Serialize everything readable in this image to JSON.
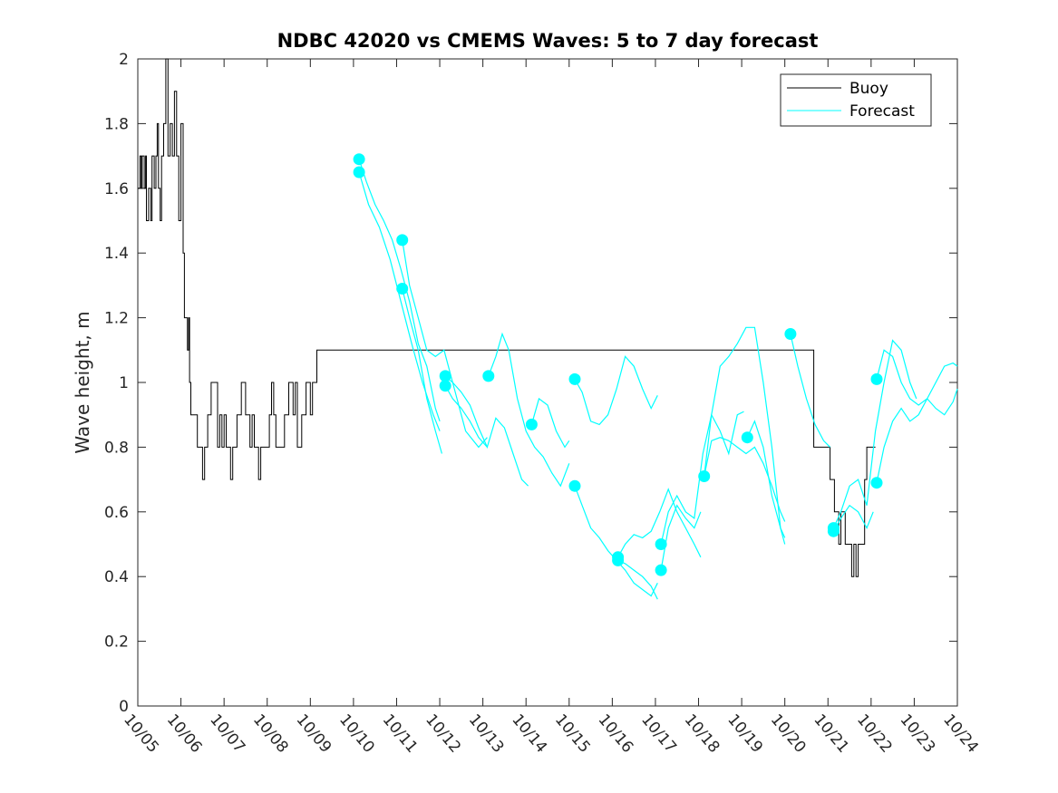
{
  "chart_data": {
    "type": "line",
    "title": "NDBC 42020 vs CMEMS Waves: 5 to 7 day forecast",
    "xlabel": "",
    "ylabel": "Wave height, m",
    "xlim": [
      0,
      19
    ],
    "ylim": [
      0,
      2
    ],
    "x_tick_labels": [
      "10/05",
      "10/06",
      "10/07",
      "10/08",
      "10/09",
      "10/10",
      "10/11",
      "10/12",
      "10/13",
      "10/14",
      "10/15",
      "10/16",
      "10/17",
      "10/18",
      "10/19",
      "10/20",
      "10/21",
      "10/22",
      "10/23",
      "10/24"
    ],
    "y_ticks": [
      0,
      0.2,
      0.4,
      0.6,
      0.8,
      1,
      1.2,
      1.4,
      1.6,
      1.8,
      2
    ],
    "y_tick_labels": [
      "0",
      "0.2",
      "0.4",
      "0.6",
      "0.8",
      "1",
      "1.2",
      "1.4",
      "1.6",
      "1.8",
      "2"
    ],
    "x_unit": "days since 10/05",
    "legend": {
      "position": "top-right",
      "entries": [
        "Buoy",
        "Forecast"
      ]
    },
    "colors": {
      "buoy": "#000000",
      "forecast": "#00FFFF"
    },
    "series": [
      {
        "name": "Buoy",
        "x": [
          0,
          0.05,
          0.08,
          0.1,
          0.15,
          0.18,
          0.2,
          0.25,
          0.3,
          0.33,
          0.38,
          0.42,
          0.45,
          0.48,
          0.52,
          0.55,
          0.6,
          0.65,
          0.7,
          0.75,
          0.8,
          0.85,
          0.9,
          0.95,
          1.0,
          1.05,
          1.08,
          1.12,
          1.15,
          1.18,
          1.2,
          1.23,
          1.3,
          1.38,
          1.45,
          1.5,
          1.55,
          1.58,
          1.62,
          1.65,
          1.7,
          1.78,
          1.85,
          1.9,
          1.95,
          2.0,
          2.05,
          2.1,
          2.15,
          2.2,
          2.3,
          2.4,
          2.5,
          2.6,
          2.65,
          2.7,
          2.75,
          2.8,
          2.85,
          2.9,
          2.95,
          3.0,
          3.05,
          3.1,
          3.15,
          3.2,
          3.3,
          3.4,
          3.5,
          3.55,
          3.6,
          3.65,
          3.7,
          3.75,
          3.8,
          3.9,
          4.0,
          4.05,
          4.1,
          4.15,
          4.2,
          4.25,
          4.3,
          4.35,
          4.4,
          4.5,
          4.55,
          4.6,
          4.65,
          4.7,
          4.75,
          15.67,
          16.0,
          16.05,
          16.1,
          16.15,
          16.2,
          16.25,
          16.3,
          16.35,
          16.4,
          16.45,
          16.5,
          16.55,
          16.6,
          16.65,
          16.7,
          16.75,
          16.8,
          16.85,
          16.9,
          16.95,
          17.0,
          17.05,
          17.1
        ],
        "y": [
          1.6,
          1.7,
          1.6,
          1.7,
          1.6,
          1.7,
          1.5,
          1.6,
          1.5,
          1.7,
          1.6,
          1.7,
          1.8,
          1.6,
          1.5,
          1.7,
          1.8,
          2.0,
          1.7,
          1.8,
          1.7,
          1.9,
          1.7,
          1.5,
          1.8,
          1.4,
          1.2,
          1.2,
          1.1,
          1.2,
          1.0,
          0.9,
          0.9,
          0.8,
          0.8,
          0.7,
          0.8,
          0.8,
          0.9,
          0.9,
          1.0,
          1.0,
          0.8,
          0.9,
          0.8,
          0.9,
          0.8,
          0.8,
          0.7,
          0.8,
          0.9,
          1.0,
          0.9,
          0.8,
          0.9,
          0.8,
          0.8,
          0.7,
          0.8,
          0.8,
          0.8,
          0.8,
          0.9,
          1.0,
          0.9,
          0.8,
          0.8,
          0.9,
          1.0,
          1.0,
          0.9,
          1.0,
          0.8,
          0.8,
          0.9,
          1.0,
          0.9,
          1.0,
          1.0,
          1.1,
          1.1,
          1.1,
          1.1,
          1.1,
          1.1,
          1.1,
          1.1,
          1.1,
          1.1,
          1.1,
          1.1,
          0.8,
          0.8,
          0.7,
          0.7,
          0.6,
          0.6,
          0.5,
          0.6,
          0.6,
          0.5,
          0.5,
          0.5,
          0.4,
          0.5,
          0.4,
          0.5,
          0.5,
          0.5,
          0.7,
          0.8,
          0.8,
          0.8,
          0.8,
          0.8
        ]
      },
      {
        "name": "Forecast",
        "lines": [
          {
            "x": [
              5.13,
              5.3,
              5.5,
              5.7,
              5.9,
              6.1,
              6.3,
              6.5,
              6.7,
              6.9,
              7.0
            ],
            "y": [
              1.69,
              1.62,
              1.55,
              1.5,
              1.44,
              1.35,
              1.25,
              1.12,
              1.05,
              0.92,
              0.88
            ]
          },
          {
            "x": [
              5.13,
              5.35,
              5.6,
              5.85,
              6.1,
              6.35,
              6.6,
              6.85,
              7.0
            ],
            "y": [
              1.65,
              1.55,
              1.48,
              1.38,
              1.25,
              1.12,
              1.0,
              0.9,
              0.85
            ]
          },
          {
            "x": [
              6.13,
              6.3,
              6.5,
              6.7,
              6.9,
              7.1,
              7.3,
              7.5,
              7.6,
              7.9,
              8.1
            ],
            "y": [
              1.44,
              1.3,
              1.2,
              1.1,
              1.08,
              1.1,
              1.0,
              0.9,
              0.85,
              0.8,
              0.83
            ]
          },
          {
            "x": [
              6.13,
              6.3,
              6.5,
              6.7,
              6.9,
              7.05
            ],
            "y": [
              1.29,
              1.2,
              1.1,
              0.95,
              0.85,
              0.78
            ]
          },
          {
            "x": [
              7.13,
              7.3,
              7.5,
              7.7,
              7.9,
              8.1,
              8.3,
              8.5,
              8.7,
              8.9,
              9.05
            ],
            "y": [
              1.02,
              1.0,
              0.97,
              0.93,
              0.86,
              0.8,
              0.89,
              0.86,
              0.78,
              0.7,
              0.68
            ]
          },
          {
            "x": [
              7.13,
              7.3,
              7.5,
              7.7,
              7.9,
              8.1
            ],
            "y": [
              0.99,
              0.95,
              0.92,
              0.88,
              0.83,
              0.8
            ]
          },
          {
            "x": [
              8.13,
              8.3,
              8.45,
              8.6,
              8.8,
              9.0,
              9.2,
              9.4,
              9.6,
              9.8,
              10.0
            ],
            "y": [
              1.02,
              1.08,
              1.15,
              1.1,
              0.95,
              0.85,
              0.8,
              0.77,
              0.72,
              0.68,
              0.75
            ]
          },
          {
            "x": [
              9.13,
              9.3,
              9.5,
              9.7,
              9.9,
              10.0
            ],
            "y": [
              0.87,
              0.95,
              0.93,
              0.85,
              0.8,
              0.82
            ]
          },
          {
            "x": [
              10.13,
              10.3,
              10.5,
              10.7,
              10.9,
              11.1,
              11.3,
              11.5,
              11.7,
              11.9,
              12.05
            ],
            "y": [
              1.01,
              0.97,
              0.88,
              0.87,
              0.9,
              0.98,
              1.08,
              1.05,
              0.98,
              0.92,
              0.96
            ]
          },
          {
            "x": [
              10.13,
              10.3,
              10.5,
              10.7,
              10.9,
              11.1,
              11.3,
              11.5,
              11.7,
              11.9,
              12.05
            ],
            "y": [
              0.68,
              0.62,
              0.55,
              0.52,
              0.48,
              0.45,
              0.42,
              0.38,
              0.36,
              0.34,
              0.38
            ]
          },
          {
            "x": [
              11.13,
              11.3,
              11.5,
              11.7,
              11.9,
              12.1,
              12.3,
              12.5,
              12.7,
              12.9,
              13.05
            ],
            "y": [
              0.46,
              0.5,
              0.53,
              0.52,
              0.54,
              0.6,
              0.67,
              0.6,
              0.55,
              0.5,
              0.46
            ]
          },
          {
            "x": [
              11.13,
              11.3,
              11.5,
              11.7,
              11.9,
              12.05
            ],
            "y": [
              0.45,
              0.44,
              0.42,
              0.4,
              0.37,
              0.33
            ]
          },
          {
            "x": [
              12.13,
              12.3,
              12.5,
              12.7,
              12.9,
              13.1,
              13.3,
              13.5,
              13.7,
              13.9,
              14.05
            ],
            "y": [
              0.5,
              0.6,
              0.65,
              0.6,
              0.58,
              0.78,
              0.9,
              0.85,
              0.78,
              0.9,
              0.91
            ]
          },
          {
            "x": [
              12.13,
              12.3,
              12.5,
              12.7,
              12.9,
              13.05
            ],
            "y": [
              0.42,
              0.55,
              0.62,
              0.58,
              0.55,
              0.6
            ]
          },
          {
            "x": [
              13.13,
              13.3,
              13.5,
              13.7,
              13.9,
              14.1,
              14.3,
              14.5,
              14.7,
              14.9,
              15.0
            ],
            "y": [
              0.71,
              0.9,
              1.05,
              1.08,
              1.12,
              1.17,
              1.17,
              1.0,
              0.8,
              0.55,
              0.5
            ]
          },
          {
            "x": [
              13.13,
              13.3,
              13.5,
              13.7,
              13.9,
              14.1,
              14.3,
              14.5,
              14.7,
              14.9,
              15.0
            ],
            "y": [
              0.71,
              0.82,
              0.83,
              0.82,
              0.8,
              0.78,
              0.8,
              0.75,
              0.68,
              0.6,
              0.57
            ]
          },
          {
            "x": [
              14.13,
              14.3,
              14.5,
              14.7,
              14.9,
              15.0
            ],
            "y": [
              0.83,
              0.88,
              0.8,
              0.65,
              0.55,
              0.52
            ]
          },
          {
            "x": [
              15.13,
              15.3,
              15.5,
              15.7,
              15.9,
              16.05
            ],
            "y": [
              1.15,
              1.05,
              0.95,
              0.87,
              0.82,
              0.8
            ]
          },
          {
            "x": [
              16.13,
              16.3,
              16.5,
              16.7,
              16.9,
              17.1,
              17.3,
              17.5,
              17.7,
              17.9,
              18.05
            ],
            "y": [
              0.55,
              0.6,
              0.68,
              0.7,
              0.62,
              0.85,
              1.0,
              1.13,
              1.1,
              1.0,
              0.95
            ]
          },
          {
            "x": [
              16.13,
              16.3,
              16.5,
              16.7,
              16.9,
              17.05
            ],
            "y": [
              0.54,
              0.58,
              0.62,
              0.6,
              0.55,
              0.6
            ]
          },
          {
            "x": [
              17.13,
              17.3,
              17.5,
              17.7,
              17.9,
              18.1,
              18.3,
              18.5,
              18.7,
              18.9,
              19.0
            ],
            "y": [
              1.01,
              1.1,
              1.08,
              1.0,
              0.95,
              0.93,
              0.95,
              1.0,
              1.05,
              1.06,
              1.05
            ]
          },
          {
            "x": [
              17.13,
              17.3,
              17.5,
              17.7,
              17.9,
              18.1,
              18.3,
              18.5,
              18.7,
              18.9,
              19.0
            ],
            "y": [
              0.69,
              0.8,
              0.88,
              0.92,
              0.88,
              0.9,
              0.95,
              0.92,
              0.9,
              0.94,
              0.98
            ]
          }
        ],
        "markers": {
          "x": [
            5.13,
            5.13,
            6.13,
            6.13,
            7.13,
            7.13,
            8.13,
            9.13,
            10.13,
            10.13,
            11.13,
            11.13,
            12.13,
            12.13,
            13.13,
            14.13,
            15.13,
            16.13,
            16.13,
            17.13,
            17.13
          ],
          "y": [
            1.69,
            1.65,
            1.44,
            1.29,
            1.02,
            0.99,
            1.02,
            0.87,
            1.01,
            0.68,
            0.46,
            0.45,
            0.5,
            0.42,
            0.71,
            0.83,
            1.15,
            0.55,
            0.54,
            1.01,
            0.69
          ]
        }
      }
    ]
  }
}
